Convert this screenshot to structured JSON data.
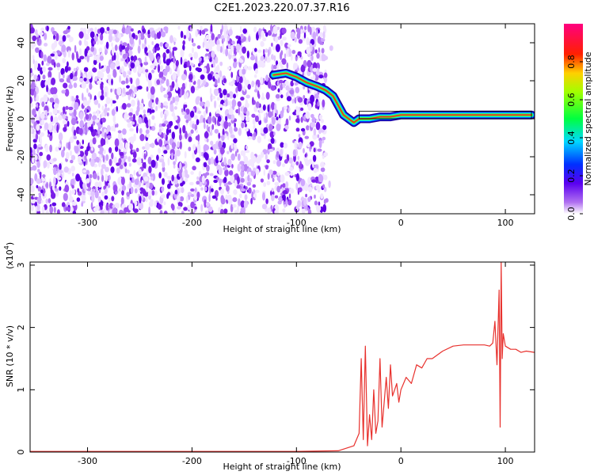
{
  "title": "C2E1.2023.220.07.37.R16",
  "colors": {
    "snr_line": "#e8312d",
    "axis": "#000000",
    "background": "#ffffff"
  },
  "chart_data": [
    {
      "type": "heatmap",
      "name": "spectrogram",
      "xlabel": "Height of straight line (km)",
      "ylabel": "Frequency (Hz)",
      "xlim": [
        -355,
        128
      ],
      "ylim": [
        -50,
        50
      ],
      "xticks": [
        -300,
        -200,
        -100,
        0,
        100
      ],
      "xtick_labels": [
        "-300",
        "-200",
        "-100",
        "0",
        "100"
      ],
      "yticks": [
        -40,
        -20,
        0,
        20,
        40
      ],
      "ytick_labels": [
        "-40",
        "-20",
        "0",
        "20",
        "40"
      ],
      "noise_region_x": [
        -355,
        -72
      ],
      "noise_band_y": [
        -50,
        48
      ],
      "colorbar": {
        "label": "Normalized spectral amplitude",
        "range": [
          0,
          1
        ],
        "ticks": [
          0.0,
          0.2,
          0.4,
          0.6,
          0.8
        ],
        "tick_labels": [
          "0.0",
          "0.2",
          "0.4",
          "0.6",
          "0.8"
        ],
        "colormap": "rainbow (white-purple-blue-cyan-green-yellow-red-magenta)"
      },
      "signal_track": {
        "x": [
          -122,
          -110,
          -100,
          -90,
          -80,
          -72,
          -65,
          -60,
          -55,
          -50,
          -45,
          -40,
          -30,
          -20,
          -10,
          0,
          20,
          40,
          60,
          80,
          90,
          100,
          110,
          125
        ],
        "y": [
          23,
          24,
          22,
          19,
          17,
          15,
          12,
          7,
          2,
          0,
          -2,
          0,
          0,
          1,
          1,
          2,
          2,
          2,
          2,
          2,
          2,
          2,
          2,
          2
        ]
      }
    },
    {
      "type": "line",
      "name": "snr",
      "xlabel": "Height of straight line (km)",
      "ylabel": "SNR (10 * v/v)",
      "y_multiplier": "(x10",
      "y_multiplier_exp": "4",
      "xlim": [
        -355,
        128
      ],
      "ylim": [
        0,
        3.05
      ],
      "xticks": [
        -300,
        -200,
        -100,
        0,
        100
      ],
      "xtick_labels": [
        "-300",
        "-200",
        "-100",
        "0",
        "100"
      ],
      "yticks": [
        0,
        1,
        2,
        3
      ],
      "ytick_labels": [
        "0",
        "1",
        "2",
        "3"
      ],
      "series": [
        {
          "x": [
            -355,
            -300,
            -200,
            -100,
            -60,
            -45,
            -40,
            -38,
            -36,
            -34,
            -32,
            -30,
            -28,
            -26,
            -24,
            -22,
            -20,
            -18,
            -16,
            -14,
            -12,
            -10,
            -8,
            -6,
            -4,
            -2,
            0,
            5,
            10,
            15,
            20,
            25,
            30,
            40,
            50,
            60,
            70,
            80,
            85,
            88,
            90,
            92,
            94,
            95,
            96,
            97,
            98,
            100,
            105,
            110,
            115,
            120,
            128
          ],
          "y": [
            0.01,
            0.01,
            0.01,
            0.01,
            0.02,
            0.1,
            0.3,
            1.5,
            0.2,
            1.7,
            0.1,
            0.6,
            0.2,
            1.0,
            0.3,
            0.5,
            1.5,
            0.4,
            0.8,
            1.2,
            0.7,
            1.4,
            0.9,
            1.0,
            1.1,
            0.8,
            1.0,
            1.2,
            1.1,
            1.4,
            1.35,
            1.5,
            1.5,
            1.62,
            1.7,
            1.72,
            1.72,
            1.72,
            1.7,
            1.75,
            2.1,
            1.4,
            2.6,
            0.4,
            3.05,
            1.5,
            1.9,
            1.7,
            1.65,
            1.65,
            1.6,
            1.62,
            1.6
          ]
        }
      ]
    }
  ]
}
